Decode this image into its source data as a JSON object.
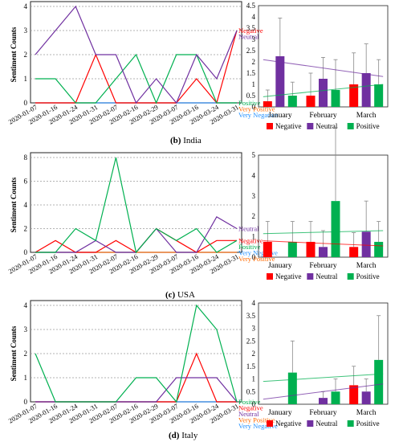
{
  "captions": [
    "(b) India",
    "(c) USA",
    "(d) Italy"
  ],
  "caption_parts": [
    {
      "letter": "(b)",
      "country": "India"
    },
    {
      "letter": "(c)",
      "country": "USA"
    },
    {
      "letter": "(d)",
      "country": "Italy"
    }
  ],
  "colors": {
    "negative": "#ff0000",
    "neutral": "#7030a0",
    "positive": "#00b050",
    "very_positive": "#ff6a00",
    "very_negative": "#1f8fff"
  },
  "chart_data": [
    {
      "type": "line",
      "panel": "India-timeline",
      "ylabel": "Sentiment Counts",
      "x": [
        "2020-01-07",
        "2020-01-16",
        "2020-01-24",
        "2020-01-31",
        "2020-02-07",
        "2020-02-16",
        "2020-02-29",
        "2020-03-07",
        "2020-03-16",
        "2020-03-24",
        "2020-03-31"
      ],
      "ylim": [
        0,
        4
      ],
      "yticks": [
        0,
        1,
        2,
        3,
        4
      ],
      "series": [
        {
          "name": "Negative",
          "key": "negative",
          "values": [
            0,
            0,
            0,
            2,
            0,
            0,
            0,
            0,
            1,
            0,
            3
          ]
        },
        {
          "name": "Neutral",
          "key": "neutral",
          "values": [
            2,
            3,
            4,
            2,
            2,
            0,
            1,
            0,
            2,
            1,
            3
          ]
        },
        {
          "name": "Positive",
          "key": "positive",
          "values": [
            1,
            1,
            0,
            0,
            1,
            2,
            0,
            2,
            2,
            0,
            0
          ]
        },
        {
          "name": "Very Positive",
          "key": "very_positive",
          "values": [
            0,
            0,
            0,
            0,
            0,
            0,
            0,
            0,
            0,
            0,
            0
          ]
        },
        {
          "name": "Very Negative",
          "key": "very_negative",
          "values": [
            0,
            0,
            0,
            0,
            0,
            0,
            0,
            0,
            0,
            0,
            0
          ]
        }
      ],
      "legend_labels": [
        "Negative",
        "Neutral",
        "Positive",
        "Very Positive",
        "Very Negative"
      ]
    },
    {
      "type": "bar",
      "panel": "India-monthly",
      "categories": [
        "January",
        "February",
        "March"
      ],
      "ylim": [
        0,
        4.5
      ],
      "yticks": [
        "0",
        "0.5",
        "1",
        "1.5",
        "2",
        "2.5",
        "3",
        "3.5",
        "4",
        "4.5"
      ],
      "series": [
        {
          "name": "Negative",
          "key": "negative",
          "values": [
            0.25,
            0.5,
            1.0
          ],
          "errors": [
            0.5,
            1.0,
            1.4
          ]
        },
        {
          "name": "Neutral",
          "key": "neutral",
          "values": [
            2.25,
            1.25,
            1.5
          ],
          "errors": [
            1.7,
            0.95,
            1.3
          ]
        },
        {
          "name": "Positive",
          "key": "positive",
          "values": [
            0.5,
            0.75,
            1.0
          ],
          "errors": [
            0.6,
            1.35,
            1.1
          ]
        }
      ],
      "trendlines": [
        {
          "key": "neutral",
          "start": 2.1,
          "end": 1.35
        },
        {
          "key": "positive",
          "start": 0.45,
          "end": 1.0
        }
      ]
    },
    {
      "type": "line",
      "panel": "USA-timeline",
      "ylabel": "Sentiment Counts",
      "x": [
        "2020-01-07",
        "2020-01-16",
        "2020-01-24",
        "2020-01-31",
        "2020-02-07",
        "2020-02-16",
        "2020-02-29",
        "2020-03-07",
        "2020-03-16",
        "2020-03-24",
        "2020-03-31"
      ],
      "ylim": [
        0,
        8
      ],
      "yticks": [
        0,
        2,
        4,
        6,
        8
      ],
      "series": [
        {
          "name": "Neutral",
          "key": "neutral",
          "values": [
            0,
            0,
            0,
            1,
            0,
            0,
            2,
            0,
            0,
            3,
            2
          ]
        },
        {
          "name": "Negative",
          "key": "negative",
          "values": [
            0,
            1,
            0,
            0,
            1,
            0,
            2,
            1,
            0,
            1,
            1
          ]
        },
        {
          "name": "Positive",
          "key": "positive",
          "values": [
            0,
            0,
            2,
            1,
            8,
            0,
            2,
            1,
            2,
            0,
            1
          ]
        },
        {
          "name": "Very Negative",
          "key": "very_negative",
          "values": [
            0,
            0,
            0,
            0,
            0,
            0,
            0,
            0,
            0,
            0,
            0
          ]
        },
        {
          "name": "Very Positive",
          "key": "very_positive",
          "values": [
            0,
            0,
            0,
            0,
            0,
            0,
            0,
            0,
            0,
            0,
            0
          ]
        }
      ],
      "legend_labels": [
        "Neutral",
        "Negative",
        "Positive",
        "Very Negative",
        "Very Positive"
      ]
    },
    {
      "type": "bar",
      "panel": "USA-monthly",
      "categories": [
        "January",
        "February",
        "March"
      ],
      "ylim": [
        0,
        5
      ],
      "yticks": [
        "0",
        "1",
        "2",
        "3",
        "4",
        "5"
      ],
      "series": [
        {
          "name": "Negative",
          "key": "negative",
          "values": [
            0.75,
            0.75,
            0.5
          ],
          "errors": [
            1.0,
            1.0,
            0.7
          ]
        },
        {
          "name": "Neutral",
          "key": "neutral",
          "values": [
            0,
            0.5,
            1.25
          ],
          "errors": [
            0,
            0.8,
            1.5
          ]
        },
        {
          "name": "Positive",
          "key": "positive",
          "values": [
            0.75,
            2.75,
            0.75
          ],
          "errors": [
            1.0,
            3.6,
            1.0
          ]
        }
      ],
      "trendlines": [
        {
          "key": "negative",
          "start": 0.8,
          "end": 0.55
        },
        {
          "key": "positive",
          "start": 1.15,
          "end": 1.3
        }
      ]
    },
    {
      "type": "line",
      "panel": "Italy-timeline",
      "ylabel": "Sentiment Counts",
      "x": [
        "2020-01-07",
        "2020-01-16",
        "2020-01-24",
        "2020-01-31",
        "2020-02-07",
        "2020-02-16",
        "2020-02-29",
        "2020-03-07",
        "2020-03-16",
        "2020-03-24",
        "2020-03-31"
      ],
      "ylim": [
        0,
        4
      ],
      "yticks": [
        0,
        1,
        2,
        3,
        4
      ],
      "series": [
        {
          "name": "Positive",
          "key": "positive",
          "values": [
            2,
            0,
            0,
            0,
            0,
            1,
            1,
            0,
            4,
            3,
            0
          ]
        },
        {
          "name": "Negative",
          "key": "negative",
          "values": [
            0,
            0,
            0,
            0,
            0,
            0,
            0,
            0,
            2,
            0,
            0
          ]
        },
        {
          "name": "Neutral",
          "key": "neutral",
          "values": [
            0,
            0,
            0,
            0,
            0,
            0,
            0,
            1,
            1,
            1,
            0
          ]
        },
        {
          "name": "Very Positive",
          "key": "very_positive",
          "values": [
            0,
            0,
            0,
            0,
            0,
            0,
            0,
            0,
            0,
            0,
            0
          ]
        },
        {
          "name": "Very Negative",
          "key": "very_negative",
          "values": [
            0,
            0,
            0,
            0,
            0,
            0,
            0,
            0,
            0,
            0,
            0
          ]
        }
      ],
      "legend_labels": [
        "Positive",
        "Negative",
        "Neutral",
        "Very Positive",
        "Very Negative"
      ]
    },
    {
      "type": "bar",
      "panel": "Italy-monthly",
      "categories": [
        "January",
        "February",
        "March"
      ],
      "ylim": [
        0,
        4
      ],
      "yticks": [
        "0",
        "0.5",
        "1",
        "1.5",
        "2",
        "2.5",
        "3",
        "3.5",
        "4"
      ],
      "series": [
        {
          "name": "Negative",
          "key": "negative",
          "values": [
            0,
            0,
            0.75
          ],
          "errors": [
            0,
            0,
            0.75
          ]
        },
        {
          "name": "Neutral",
          "key": "neutral",
          "values": [
            0,
            0.25,
            0.5
          ],
          "errors": [
            0,
            0.25,
            0.5
          ]
        },
        {
          "name": "Positive",
          "key": "positive",
          "values": [
            1.25,
            0.5,
            1.75
          ],
          "errors": [
            1.25,
            0.5,
            1.75
          ]
        }
      ],
      "trendlines": [
        {
          "key": "positive",
          "start": 0.9,
          "end": 1.2
        },
        {
          "key": "neutral",
          "start": 0.2,
          "end": 0.8
        }
      ]
    }
  ]
}
